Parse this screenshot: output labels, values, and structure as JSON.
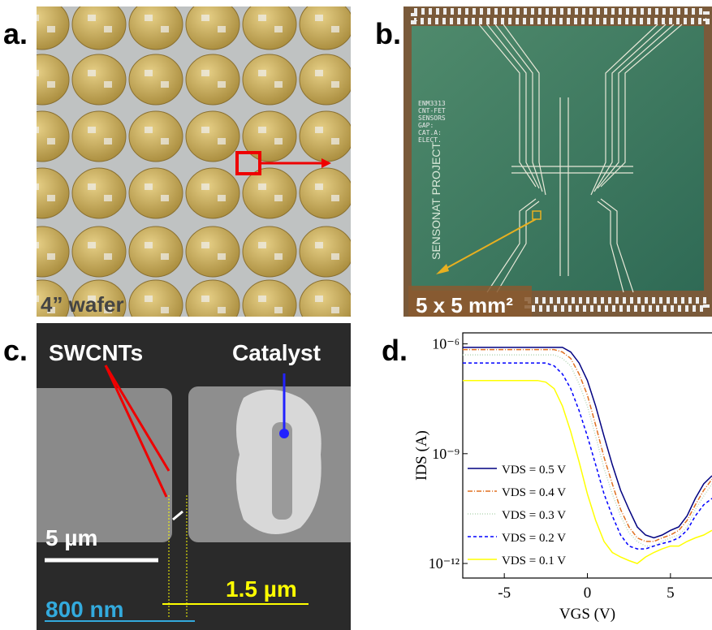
{
  "panels": {
    "a": {
      "label": "a.",
      "annotation": "4” wafer"
    },
    "b": {
      "label": "b.",
      "annotation": "5 x 5 mm²",
      "chip_text": [
        "ENM3313",
        "CNT-FET",
        "SENSORS",
        "GAP:",
        "CAT.A:",
        "ELECT."
      ],
      "project": "SENSONAT PROJECT"
    },
    "c": {
      "label": "c.",
      "swcnts": "SWCNTs",
      "catalyst": "Catalyst",
      "scale": "5 µm",
      "gap": "800 nm",
      "width": "1.5 µm"
    },
    "d": {
      "label": "d."
    }
  },
  "chart_data": {
    "type": "line",
    "x_label": "VGS (V)",
    "y_label": "IDS (A)",
    "log_y": true,
    "xlim": [
      -7.5,
      7.5
    ],
    "xticks": [
      -5,
      0,
      5
    ],
    "ylim": [
      4e-13,
      2e-06
    ],
    "yticks": [
      {
        "value": 1e-06,
        "label": "10⁻⁶"
      },
      {
        "value": 1e-09,
        "label": "10⁻⁹"
      },
      {
        "value": 1e-12,
        "label": "10⁻¹²"
      }
    ],
    "x": [
      -7.5,
      -7,
      -6.5,
      -6,
      -5.5,
      -5,
      -4.5,
      -4,
      -3.5,
      -3,
      -2.5,
      -2,
      -1.5,
      -1,
      -0.5,
      0,
      0.5,
      1,
      1.5,
      2,
      2.5,
      3,
      3.5,
      4,
      4.5,
      5,
      5.5,
      6,
      6.5,
      7,
      7.5
    ],
    "series": [
      {
        "name": "VDS = 0.5 V",
        "color": "#000080",
        "dash": "none",
        "values": [
          8e-07,
          8e-07,
          8e-07,
          8e-07,
          8e-07,
          8e-07,
          8e-07,
          8e-07,
          8e-07,
          8e-07,
          8e-07,
          8e-07,
          8e-07,
          6e-07,
          3e-07,
          1e-07,
          2e-08,
          3e-09,
          5e-10,
          1e-10,
          3e-11,
          1e-11,
          6e-12,
          5e-12,
          6e-12,
          8e-12,
          1e-11,
          2e-11,
          6e-11,
          1.5e-10,
          2.5e-10
        ]
      },
      {
        "name": "VDS = 0.4 V",
        "color": "#e07020",
        "dash": "6 2 1 2",
        "values": [
          7e-07,
          7e-07,
          7e-07,
          7e-07,
          7e-07,
          7e-07,
          7e-07,
          7e-07,
          7e-07,
          7e-07,
          7e-07,
          7e-07,
          6e-07,
          4e-07,
          1.5e-07,
          4e-08,
          6e-09,
          8e-10,
          1.5e-10,
          3e-11,
          1e-11,
          5e-12,
          4e-12,
          4e-12,
          5e-12,
          6e-12,
          8e-12,
          1.5e-11,
          4e-11,
          1e-10,
          2e-10
        ]
      },
      {
        "name": "VDS = 0.3 V",
        "color": "#b8d8b8",
        "dash": "1 2",
        "values": [
          5e-07,
          5e-07,
          5e-07,
          5e-07,
          5e-07,
          5e-07,
          5e-07,
          5e-07,
          5e-07,
          5e-07,
          5e-07,
          5e-07,
          4e-07,
          2.5e-07,
          8e-08,
          2e-08,
          3e-09,
          4e-10,
          8e-11,
          2e-11,
          7e-12,
          4e-12,
          3e-12,
          3e-12,
          4e-12,
          5e-12,
          6e-12,
          1e-11,
          3e-11,
          7e-11,
          1.5e-10
        ]
      },
      {
        "name": "VDS = 0.2 V",
        "color": "#0000ff",
        "dash": "4 3",
        "values": [
          3e-07,
          3e-07,
          3e-07,
          3e-07,
          3e-07,
          3e-07,
          3e-07,
          3e-07,
          3e-07,
          3e-07,
          3e-07,
          2.5e-07,
          1.5e-07,
          6e-08,
          1.5e-08,
          3e-09,
          5e-10,
          8e-11,
          2e-11,
          6e-12,
          3e-12,
          2.5e-12,
          2.5e-12,
          3e-12,
          3.5e-12,
          4e-12,
          5e-12,
          8e-12,
          2e-11,
          4e-11,
          6e-11
        ]
      },
      {
        "name": "VDS = 0.1 V",
        "color": "#ffff00",
        "dash": "none",
        "values": [
          1e-07,
          1e-07,
          1e-07,
          1e-07,
          1e-07,
          1e-07,
          1e-07,
          1e-07,
          1e-07,
          1e-07,
          9e-08,
          6e-08,
          2e-08,
          4e-09,
          6e-10,
          8e-11,
          1.5e-11,
          4e-12,
          2e-12,
          1.5e-12,
          1.2e-12,
          1e-12,
          1.5e-12,
          2e-12,
          2.5e-12,
          3e-12,
          3e-12,
          4e-12,
          5e-12,
          6e-12,
          8e-12
        ]
      }
    ]
  }
}
